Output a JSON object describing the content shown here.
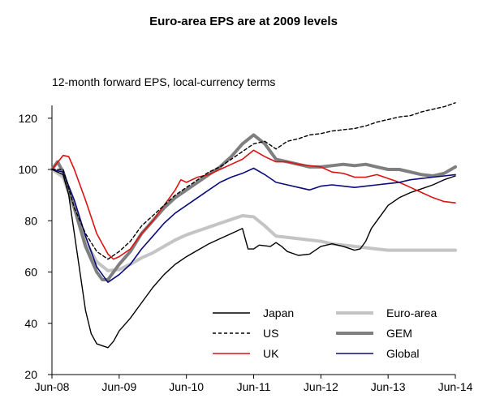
{
  "chart_data": {
    "type": "line",
    "title": "Euro-area EPS are at 2009 levels",
    "subtitle": "12-month forward EPS, local-currency terms",
    "xlabel": "",
    "ylabel": "",
    "ylim": [
      20,
      125
    ],
    "yticks": [
      20,
      40,
      60,
      80,
      100,
      120
    ],
    "xlim": [
      "2008-06",
      "2014-06"
    ],
    "xtick_labels": [
      "Jun-08",
      "Jun-09",
      "Jun-10",
      "Jun-11",
      "Jun-12",
      "Jun-13",
      "Jun-14"
    ],
    "grid": false,
    "legend_position": "bottom-center",
    "series": [
      {
        "name": "Japan",
        "color": "#000000",
        "style": "solid-thin",
        "points": [
          [
            "2008-06",
            100
          ],
          [
            "2008-08",
            98
          ],
          [
            "2008-09",
            90
          ],
          [
            "2008-10",
            75
          ],
          [
            "2008-11",
            60
          ],
          [
            "2008-12",
            45
          ],
          [
            "2009-01",
            36
          ],
          [
            "2009-02",
            32
          ],
          [
            "2009-04",
            30.5
          ],
          [
            "2009-05",
            33
          ],
          [
            "2009-06",
            37
          ],
          [
            "2009-08",
            42
          ],
          [
            "2009-10",
            48
          ],
          [
            "2009-12",
            54
          ],
          [
            "2010-02",
            59
          ],
          [
            "2010-04",
            63
          ],
          [
            "2010-06",
            66
          ],
          [
            "2010-08",
            68.5
          ],
          [
            "2010-10",
            71
          ],
          [
            "2010-12",
            73
          ],
          [
            "2011-02",
            75
          ],
          [
            "2011-04",
            77
          ],
          [
            "2011-05",
            69
          ],
          [
            "2011-06",
            69
          ],
          [
            "2011-07",
            70.5
          ],
          [
            "2011-09",
            70
          ],
          [
            "2011-10",
            71.5
          ],
          [
            "2011-11",
            70
          ],
          [
            "2011-12",
            68
          ],
          [
            "2012-02",
            66.5
          ],
          [
            "2012-04",
            67
          ],
          [
            "2012-06",
            70
          ],
          [
            "2012-08",
            71
          ],
          [
            "2012-10",
            70
          ],
          [
            "2012-12",
            68.5
          ],
          [
            "2013-01",
            69
          ],
          [
            "2013-02",
            72
          ],
          [
            "2013-03",
            77
          ],
          [
            "2013-04",
            80
          ],
          [
            "2013-06",
            86
          ],
          [
            "2013-08",
            89
          ],
          [
            "2013-10",
            91
          ],
          [
            "2013-12",
            92.5
          ],
          [
            "2014-02",
            94
          ],
          [
            "2014-04",
            96
          ],
          [
            "2014-06",
            97.5
          ]
        ]
      },
      {
        "name": "US",
        "color": "#000000",
        "style": "dashed",
        "points": [
          [
            "2008-06",
            100
          ],
          [
            "2008-08",
            100
          ],
          [
            "2008-10",
            85
          ],
          [
            "2008-12",
            75
          ],
          [
            "2009-02",
            68
          ],
          [
            "2009-04",
            65
          ],
          [
            "2009-06",
            68
          ],
          [
            "2009-08",
            72
          ],
          [
            "2009-10",
            78
          ],
          [
            "2009-12",
            82
          ],
          [
            "2010-02",
            86
          ],
          [
            "2010-04",
            90
          ],
          [
            "2010-06",
            93
          ],
          [
            "2010-08",
            96
          ],
          [
            "2010-10",
            99
          ],
          [
            "2010-12",
            101
          ],
          [
            "2011-02",
            104
          ],
          [
            "2011-04",
            107
          ],
          [
            "2011-06",
            110
          ],
          [
            "2011-08",
            111
          ],
          [
            "2011-10",
            108
          ],
          [
            "2011-12",
            111
          ],
          [
            "2012-02",
            112
          ],
          [
            "2012-04",
            113.5
          ],
          [
            "2012-06",
            114
          ],
          [
            "2012-08",
            115
          ],
          [
            "2012-10",
            115.5
          ],
          [
            "2012-12",
            116
          ],
          [
            "2013-02",
            117
          ],
          [
            "2013-04",
            118.5
          ],
          [
            "2013-06",
            119.5
          ],
          [
            "2013-08",
            120.5
          ],
          [
            "2013-10",
            121
          ],
          [
            "2013-12",
            122.5
          ],
          [
            "2014-02",
            123.5
          ],
          [
            "2014-04",
            124.5
          ],
          [
            "2014-06",
            126
          ]
        ]
      },
      {
        "name": "UK",
        "color": "#dd1111",
        "style": "solid",
        "points": [
          [
            "2008-06",
            100
          ],
          [
            "2008-08",
            105.5
          ],
          [
            "2008-09",
            105
          ],
          [
            "2008-10",
            100
          ],
          [
            "2008-12",
            88
          ],
          [
            "2009-02",
            75
          ],
          [
            "2009-04",
            67
          ],
          [
            "2009-05",
            65
          ],
          [
            "2009-06",
            66
          ],
          [
            "2009-08",
            69
          ],
          [
            "2009-10",
            75
          ],
          [
            "2009-12",
            80
          ],
          [
            "2010-02",
            86
          ],
          [
            "2010-04",
            92
          ],
          [
            "2010-05",
            96
          ],
          [
            "2010-06",
            95
          ],
          [
            "2010-08",
            97
          ],
          [
            "2010-10",
            98
          ],
          [
            "2010-12",
            100
          ],
          [
            "2011-02",
            102
          ],
          [
            "2011-04",
            104
          ],
          [
            "2011-06",
            107.5
          ],
          [
            "2011-08",
            105
          ],
          [
            "2011-10",
            103
          ],
          [
            "2011-12",
            103
          ],
          [
            "2012-02",
            102
          ],
          [
            "2012-04",
            101.5
          ],
          [
            "2012-06",
            101
          ],
          [
            "2012-08",
            99
          ],
          [
            "2012-10",
            98.5
          ],
          [
            "2012-12",
            97
          ],
          [
            "2013-02",
            97
          ],
          [
            "2013-04",
            98
          ],
          [
            "2013-06",
            96.5
          ],
          [
            "2013-08",
            95
          ],
          [
            "2013-10",
            93
          ],
          [
            "2013-12",
            91
          ],
          [
            "2014-02",
            89
          ],
          [
            "2014-04",
            87.5
          ],
          [
            "2014-06",
            87
          ]
        ]
      },
      {
        "name": "Euro-area",
        "color": "#c4c4c4",
        "style": "thick",
        "points": [
          [
            "2008-06",
            100
          ],
          [
            "2008-08",
            97
          ],
          [
            "2008-10",
            85
          ],
          [
            "2008-12",
            72
          ],
          [
            "2009-02",
            64
          ],
          [
            "2009-04",
            60.5
          ],
          [
            "2009-06",
            61
          ],
          [
            "2009-08",
            63
          ],
          [
            "2009-10",
            65.5
          ],
          [
            "2009-12",
            67.5
          ],
          [
            "2010-02",
            70
          ],
          [
            "2010-04",
            72.5
          ],
          [
            "2010-06",
            74.5
          ],
          [
            "2010-08",
            76
          ],
          [
            "2010-10",
            77.5
          ],
          [
            "2010-12",
            79
          ],
          [
            "2011-02",
            80.5
          ],
          [
            "2011-04",
            82
          ],
          [
            "2011-06",
            81.5
          ],
          [
            "2011-08",
            78
          ],
          [
            "2011-10",
            74
          ],
          [
            "2011-12",
            73.5
          ],
          [
            "2012-02",
            73
          ],
          [
            "2012-04",
            72.5
          ],
          [
            "2012-06",
            72
          ],
          [
            "2012-08",
            71
          ],
          [
            "2012-10",
            70.5
          ],
          [
            "2012-12",
            70
          ],
          [
            "2013-02",
            69.5
          ],
          [
            "2013-04",
            69
          ],
          [
            "2013-06",
            68.5
          ],
          [
            "2013-08",
            68.5
          ],
          [
            "2013-10",
            68.5
          ],
          [
            "2013-12",
            68.5
          ],
          [
            "2014-02",
            68.5
          ],
          [
            "2014-04",
            68.5
          ],
          [
            "2014-06",
            68.5
          ]
        ]
      },
      {
        "name": "GEM",
        "color": "#7f7f7f",
        "style": "thick",
        "points": [
          [
            "2008-06",
            100
          ],
          [
            "2008-07",
            103
          ],
          [
            "2008-08",
            99
          ],
          [
            "2008-10",
            85
          ],
          [
            "2008-12",
            70
          ],
          [
            "2009-02",
            60
          ],
          [
            "2009-03",
            57
          ],
          [
            "2009-04",
            57
          ],
          [
            "2009-05",
            60
          ],
          [
            "2009-06",
            63
          ],
          [
            "2009-08",
            68
          ],
          [
            "2009-10",
            75
          ],
          [
            "2009-12",
            80
          ],
          [
            "2010-02",
            85
          ],
          [
            "2010-04",
            89
          ],
          [
            "2010-06",
            92
          ],
          [
            "2010-08",
            95
          ],
          [
            "2010-10",
            98
          ],
          [
            "2010-12",
            101
          ],
          [
            "2011-02",
            105
          ],
          [
            "2011-04",
            110
          ],
          [
            "2011-06",
            113.5
          ],
          [
            "2011-08",
            110
          ],
          [
            "2011-10",
            104
          ],
          [
            "2011-12",
            103
          ],
          [
            "2012-02",
            102
          ],
          [
            "2012-04",
            101
          ],
          [
            "2012-06",
            101
          ],
          [
            "2012-08",
            101.5
          ],
          [
            "2012-10",
            102
          ],
          [
            "2012-12",
            101.5
          ],
          [
            "2013-02",
            102
          ],
          [
            "2013-04",
            101
          ],
          [
            "2013-06",
            100
          ],
          [
            "2013-08",
            100
          ],
          [
            "2013-10",
            99
          ],
          [
            "2013-12",
            98
          ],
          [
            "2014-02",
            97.5
          ],
          [
            "2014-04",
            98.5
          ],
          [
            "2014-06",
            101
          ]
        ]
      },
      {
        "name": "Global",
        "color": "#0a0a7a",
        "style": "solid",
        "points": [
          [
            "2008-06",
            100
          ],
          [
            "2008-08",
            99
          ],
          [
            "2008-10",
            88
          ],
          [
            "2008-12",
            74
          ],
          [
            "2009-02",
            62
          ],
          [
            "2009-04",
            56
          ],
          [
            "2009-06",
            59
          ],
          [
            "2009-08",
            63
          ],
          [
            "2009-10",
            69
          ],
          [
            "2009-12",
            74
          ],
          [
            "2010-02",
            79
          ],
          [
            "2010-04",
            83
          ],
          [
            "2010-06",
            86
          ],
          [
            "2010-08",
            89
          ],
          [
            "2010-10",
            92
          ],
          [
            "2010-12",
            95
          ],
          [
            "2011-02",
            97
          ],
          [
            "2011-04",
            98.5
          ],
          [
            "2011-06",
            100.5
          ],
          [
            "2011-08",
            98
          ],
          [
            "2011-10",
            95
          ],
          [
            "2011-12",
            94
          ],
          [
            "2012-02",
            93
          ],
          [
            "2012-04",
            92
          ],
          [
            "2012-06",
            93.5
          ],
          [
            "2012-08",
            94
          ],
          [
            "2012-10",
            93.5
          ],
          [
            "2012-12",
            93
          ],
          [
            "2013-02",
            93.5
          ],
          [
            "2013-04",
            94
          ],
          [
            "2013-06",
            94.5
          ],
          [
            "2013-08",
            95
          ],
          [
            "2013-10",
            96
          ],
          [
            "2013-12",
            96.5
          ],
          [
            "2014-02",
            97
          ],
          [
            "2014-04",
            97.5
          ],
          [
            "2014-06",
            98
          ]
        ]
      }
    ],
    "legend_order": [
      "Japan",
      "Euro-area",
      "US",
      "GEM",
      "UK",
      "Global"
    ]
  }
}
